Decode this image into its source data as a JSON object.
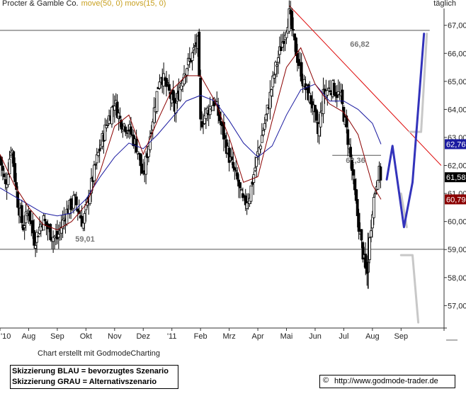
{
  "header": {
    "title": "Procter & Gamble Co.",
    "indicators": "move(50, 0) movs(15, 0)",
    "interval": "täglich"
  },
  "footer": {
    "credit": "Chart erstellt mit GodmodeCharting",
    "legend_blue": "Skizzierung BLAU = bevorzugtes Szenario",
    "legend_gray": "Skizzierung GRAU = Alternativszenario",
    "copyright_symbol": "©",
    "url": "http://www.godmode-trader.de"
  },
  "colors": {
    "candles": "#000000",
    "ma_short": "#8b0000",
    "ma_long": "#1a1aa0",
    "trendline": "#dd0000",
    "scenario_blue": "#3333bb",
    "scenario_gray": "#c8c8c8",
    "horizontal_lines": "#555555"
  },
  "chart_data": {
    "type": "candlestick",
    "title": "Procter & Gamble Co.",
    "ylim": [
      56.2,
      67.6
    ],
    "y_ticks": [
      "57,00",
      "58,00",
      "59,00",
      "60,00",
      "61,00",
      "62,00",
      "63,00",
      "64,00",
      "65,00",
      "66,00",
      "67,00"
    ],
    "x_ticks": [
      "'10",
      "Aug",
      "Sep",
      "Okt",
      "Nov",
      "Dez",
      "'11",
      "Feb",
      "Mrz",
      "Apr",
      "Mai",
      "Jun",
      "Jul",
      "Aug",
      "Sep"
    ],
    "x_tick_months": [
      6.0,
      7.0,
      8.0,
      9.0,
      10.0,
      11.0,
      12.0,
      13.0,
      14.0,
      15.0,
      16.0,
      17.0,
      18.0,
      19.0,
      20.0
    ],
    "x_range_months": [
      6.0,
      21.5
    ],
    "price_path": [
      [
        6.0,
        62.3
      ],
      [
        6.2,
        61.2
      ],
      [
        6.4,
        62.8
      ],
      [
        6.6,
        60.8
      ],
      [
        6.8,
        59.8
      ],
      [
        7.0,
        60.4
      ],
      [
        7.2,
        59.3
      ],
      [
        7.5,
        60.1
      ],
      [
        7.8,
        59.5
      ],
      [
        8.0,
        59.4
      ],
      [
        8.3,
        60.3
      ],
      [
        8.6,
        60.8
      ],
      [
        8.9,
        59.9
      ],
      [
        9.1,
        60.9
      ],
      [
        9.4,
        62.3
      ],
      [
        9.7,
        63.4
      ],
      [
        10.0,
        64.3
      ],
      [
        10.2,
        63.6
      ],
      [
        10.5,
        63.3
      ],
      [
        10.8,
        62.6
      ],
      [
        11.0,
        61.5
      ],
      [
        11.3,
        63.5
      ],
      [
        11.6,
        65.3
      ],
      [
        11.9,
        64.6
      ],
      [
        12.1,
        64.0
      ],
      [
        12.4,
        65.3
      ],
      [
        12.7,
        65.9
      ],
      [
        12.9,
        66.5
      ],
      [
        13.0,
        63.5
      ],
      [
        13.2,
        63.9
      ],
      [
        13.5,
        64.3
      ],
      [
        13.8,
        63.1
      ],
      [
        14.0,
        62.3
      ],
      [
        14.3,
        61.4
      ],
      [
        14.5,
        60.6
      ],
      [
        14.7,
        60.9
      ],
      [
        15.0,
        62.4
      ],
      [
        15.3,
        63.8
      ],
      [
        15.6,
        65.4
      ],
      [
        15.9,
        66.6
      ],
      [
        16.1,
        67.4
      ],
      [
        16.3,
        66.2
      ],
      [
        16.6,
        64.9
      ],
      [
        16.9,
        64.2
      ],
      [
        17.1,
        63.1
      ],
      [
        17.3,
        64.6
      ],
      [
        17.6,
        64.8
      ],
      [
        17.9,
        64.4
      ],
      [
        18.2,
        62.6
      ],
      [
        18.4,
        60.8
      ],
      [
        18.6,
        59.3
      ],
      [
        18.8,
        58.0
      ],
      [
        19.0,
        60.5
      ],
      [
        19.2,
        61.8
      ],
      [
        19.3,
        61.58
      ]
    ],
    "ma_short_path": [
      [
        6.0,
        62.4
      ],
      [
        6.5,
        61.3
      ],
      [
        7.0,
        60.5
      ],
      [
        7.5,
        59.9
      ],
      [
        8.0,
        59.7
      ],
      [
        8.5,
        60.0
      ],
      [
        9.0,
        60.6
      ],
      [
        9.5,
        61.8
      ],
      [
        10.0,
        63.4
      ],
      [
        10.5,
        63.8
      ],
      [
        11.0,
        62.4
      ],
      [
        11.5,
        63.6
      ],
      [
        12.0,
        64.7
      ],
      [
        12.5,
        65.2
      ],
      [
        13.0,
        65.2
      ],
      [
        13.5,
        64.3
      ],
      [
        14.0,
        63.0
      ],
      [
        14.5,
        61.4
      ],
      [
        15.0,
        61.6
      ],
      [
        15.5,
        63.6
      ],
      [
        16.0,
        65.5
      ],
      [
        16.5,
        66.2
      ],
      [
        17.0,
        64.9
      ],
      [
        17.5,
        64.2
      ],
      [
        18.0,
        63.9
      ],
      [
        18.5,
        63.1
      ],
      [
        19.0,
        61.3
      ],
      [
        19.3,
        60.79
      ]
    ],
    "ma_long_path": [
      [
        6.0,
        61.2
      ],
      [
        6.5,
        60.9
      ],
      [
        7.0,
        60.6
      ],
      [
        7.5,
        60.3
      ],
      [
        8.0,
        60.2
      ],
      [
        8.5,
        60.3
      ],
      [
        9.0,
        60.8
      ],
      [
        9.5,
        61.6
      ],
      [
        10.0,
        62.3
      ],
      [
        10.5,
        62.8
      ],
      [
        11.0,
        62.6
      ],
      [
        11.5,
        63.1
      ],
      [
        12.0,
        63.7
      ],
      [
        12.5,
        64.3
      ],
      [
        13.0,
        64.5
      ],
      [
        13.5,
        64.3
      ],
      [
        14.0,
        63.6
      ],
      [
        14.5,
        62.8
      ],
      [
        15.0,
        62.3
      ],
      [
        15.5,
        62.7
      ],
      [
        16.0,
        63.8
      ],
      [
        16.5,
        64.7
      ],
      [
        17.0,
        64.9
      ],
      [
        17.5,
        64.3
      ],
      [
        18.0,
        64.3
      ],
      [
        18.5,
        64.0
      ],
      [
        19.0,
        63.5
      ],
      [
        19.3,
        62.76
      ]
    ],
    "horizontal_lines": [
      {
        "value": 66.82,
        "label": "66,82",
        "from": 6.0,
        "to": 21.0
      },
      {
        "value": 62.36,
        "label": "62,36",
        "from": 17.6,
        "to": 19.3
      },
      {
        "value": 59.01,
        "label": "59,01",
        "from": 6.0,
        "to": 21.5
      }
    ],
    "trendline": [
      [
        16.1,
        67.7
      ],
      [
        21.4,
        62.0
      ]
    ],
    "scenario_blue": [
      [
        19.5,
        61.5
      ],
      [
        19.7,
        62.7
      ],
      [
        20.1,
        59.8
      ],
      [
        20.4,
        61.4
      ],
      [
        20.8,
        66.7
      ]
    ],
    "scenario_gray": [
      [
        [
          20.3,
          63.2
        ],
        [
          20.7,
          63.2
        ],
        [
          20.9,
          66.7
        ]
      ],
      [
        [
          20.0,
          61.0
        ],
        [
          20.2,
          59.8
        ]
      ],
      [
        [
          20.0,
          58.8
        ],
        [
          20.4,
          58.8
        ],
        [
          20.6,
          56.4
        ]
      ]
    ],
    "price_badges": [
      {
        "value": 62.76,
        "label": "62,76",
        "color": "#1a1aa0"
      },
      {
        "value": 61.58,
        "label": "61,58",
        "color": "#000000"
      },
      {
        "value": 60.79,
        "label": "60,79",
        "color": "#8b0000"
      }
    ],
    "grid": false,
    "legend": "none"
  }
}
